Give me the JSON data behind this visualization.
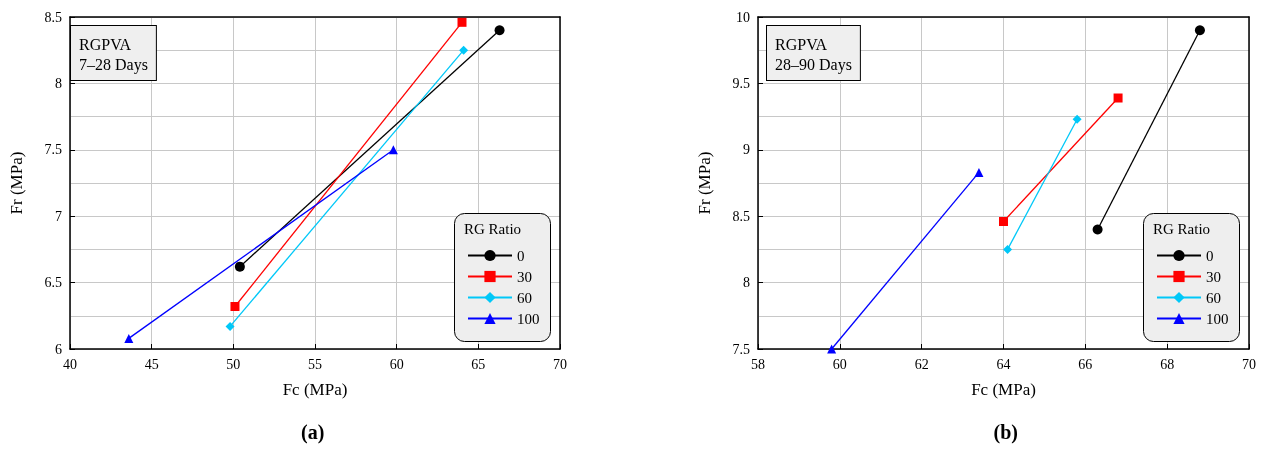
{
  "chart_data": [
    {
      "type": "line",
      "xlabel": "Fc (MPa)",
      "ylabel": "Fr (MPa)",
      "legend_title": "RG Ratio",
      "legend": "bottom right",
      "grid": true,
      "annotations": [
        "RGPVA\n7–28 Days",
        "(a)"
      ],
      "xlim": [
        40,
        70
      ],
      "xticks": [
        40,
        45,
        50,
        55,
        60,
        65,
        70
      ],
      "ylim": [
        6,
        8.5
      ],
      "yticks": [
        6,
        6.5,
        7,
        7.5,
        8,
        8.5
      ],
      "series": [
        {
          "name": "0",
          "color": "#000000",
          "marker": "circle",
          "x": [
            50.4,
            66.3
          ],
          "values": [
            6.62,
            8.4
          ]
        },
        {
          "name": "30",
          "color": "#ff0000",
          "marker": "square",
          "x": [
            50.1,
            64.0
          ],
          "values": [
            6.32,
            8.46
          ]
        },
        {
          "name": "60",
          "color": "#00c8f8",
          "marker": "diamond",
          "x": [
            49.8,
            64.1
          ],
          "values": [
            6.17,
            8.25
          ]
        },
        {
          "name": "100",
          "color": "#0000ff",
          "marker": "triangle",
          "x": [
            43.6,
            59.8
          ],
          "values": [
            6.08,
            7.5
          ]
        }
      ]
    },
    {
      "type": "line",
      "xlabel": "Fc (MPa)",
      "ylabel": "Fr (MPa)",
      "legend_title": "RG Ratio",
      "legend": "bottom right",
      "grid": true,
      "annotations": [
        "RGPVA\n28–90 Days",
        "(b)"
      ],
      "xlim": [
        58,
        70
      ],
      "xticks": [
        58,
        60,
        62,
        64,
        66,
        68,
        70
      ],
      "ylim": [
        7.5,
        10
      ],
      "yticks": [
        7.5,
        8,
        8.5,
        9,
        9.5,
        10
      ],
      "series": [
        {
          "name": "0",
          "color": "#000000",
          "marker": "circle",
          "x": [
            66.3,
            68.8
          ],
          "values": [
            8.4,
            9.9
          ]
        },
        {
          "name": "30",
          "color": "#ff0000",
          "marker": "square",
          "x": [
            64.0,
            66.8
          ],
          "values": [
            8.46,
            9.39
          ]
        },
        {
          "name": "60",
          "color": "#00c8f8",
          "marker": "diamond",
          "x": [
            64.1,
            65.8
          ],
          "values": [
            8.25,
            9.23
          ]
        },
        {
          "name": "100",
          "color": "#0000ff",
          "marker": "triangle",
          "x": [
            59.8,
            63.4
          ],
          "values": [
            7.5,
            8.83
          ]
        }
      ]
    }
  ]
}
